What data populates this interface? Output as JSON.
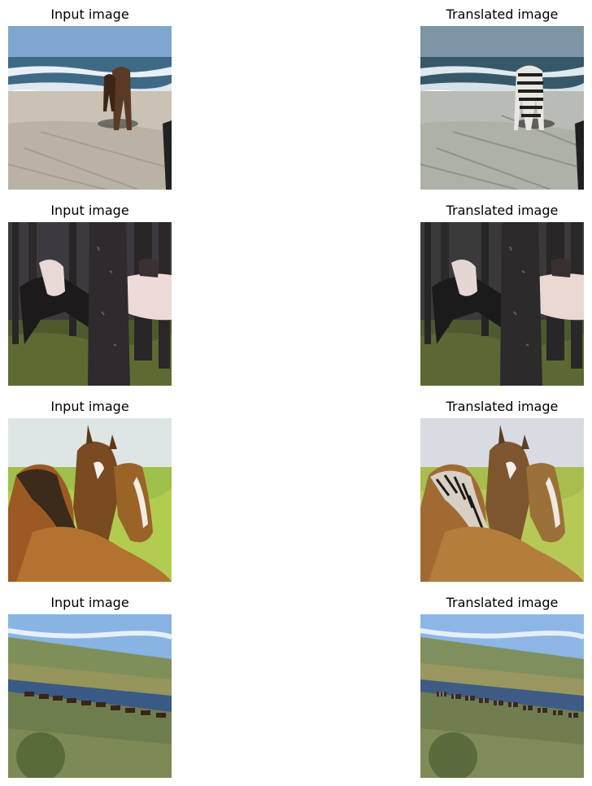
{
  "rows": [
    {
      "input_title": "Input image",
      "output_title": "Translated image",
      "input_alt": "horses on a beach",
      "output_alt": "zebra-striped horses on a beach"
    },
    {
      "input_title": "Input image",
      "output_title": "Translated image",
      "input_alt": "horses among trees",
      "output_alt": "horses among trees (translated)"
    },
    {
      "input_title": "Input image",
      "output_title": "Translated image",
      "input_alt": "three brown horses",
      "output_alt": "three horses with zebra stripes"
    },
    {
      "input_title": "Input image",
      "output_title": "Translated image",
      "input_alt": "herd of horses by a lake",
      "output_alt": "herd of horses by a lake (translated)"
    }
  ]
}
